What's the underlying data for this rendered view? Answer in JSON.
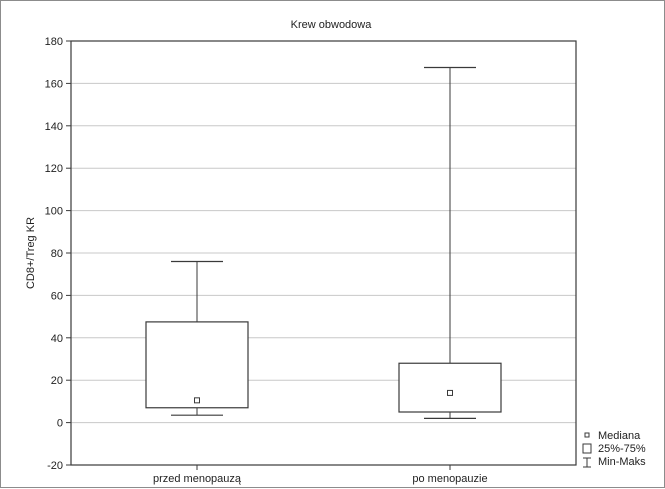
{
  "chart_data": {
    "type": "boxplot",
    "title": "Krew obwodowa",
    "xlabel": "",
    "ylabel": "CD8+/Treg KR",
    "ylim": [
      -20,
      180
    ],
    "yticks": [
      -20,
      0,
      20,
      40,
      60,
      80,
      100,
      120,
      140,
      160,
      180
    ],
    "grid": true,
    "legend_position": "bottom-right",
    "categories": [
      "przed menopauzą",
      "po menopauzie"
    ],
    "boxes": [
      {
        "category": "przed menopauzą",
        "min": 3.5,
        "q1": 7,
        "median": 10.5,
        "q3": 47.5,
        "max": 76
      },
      {
        "category": "po menopauzie",
        "min": 2,
        "q1": 5,
        "median": 14,
        "q3": 28,
        "max": 167.5
      }
    ],
    "legend": [
      {
        "symbol": "median-square",
        "label": "Mediana"
      },
      {
        "symbol": "box",
        "label": "25%-75%"
      },
      {
        "symbol": "whisker",
        "label": "Min-Maks"
      }
    ],
    "colors": {
      "line": "#3a3a3a",
      "grid": "#c8c8c8",
      "box_fill": "#ffffff"
    }
  }
}
